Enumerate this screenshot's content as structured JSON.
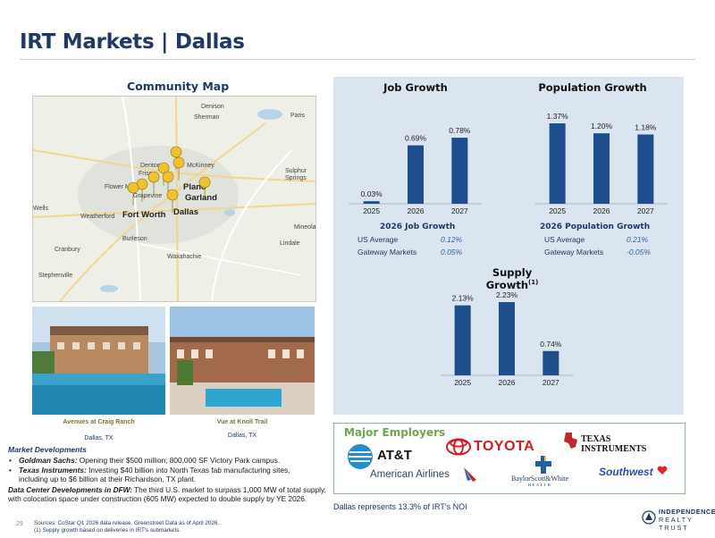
{
  "page": {
    "title": "IRT Markets | Dallas",
    "page_number": "29"
  },
  "map": {
    "heading": "Community Map",
    "labels": [
      {
        "text": "Denison",
        "cls": ""
      },
      {
        "text": "Sherman",
        "cls": ""
      },
      {
        "text": "Paris",
        "cls": ""
      },
      {
        "text": "Denton",
        "cls": ""
      },
      {
        "text": "McKinney",
        "cls": ""
      },
      {
        "text": "Frisco",
        "cls": ""
      },
      {
        "text": "Sulphur Springs",
        "cls": ""
      },
      {
        "text": "Flower Mound",
        "cls": ""
      },
      {
        "text": "Plano",
        "cls": "big"
      },
      {
        "text": "Grapevine",
        "cls": ""
      },
      {
        "text": "Garland",
        "cls": "big"
      },
      {
        "text": "Weatherford",
        "cls": ""
      },
      {
        "text": "Fort Worth",
        "cls": "big"
      },
      {
        "text": "Dallas",
        "cls": "big"
      },
      {
        "text": "Mineola",
        "cls": ""
      },
      {
        "text": "Burleson",
        "cls": ""
      },
      {
        "text": "Lindale",
        "cls": ""
      },
      {
        "text": "Cranbury",
        "cls": ""
      },
      {
        "text": "Waxahachie",
        "cls": ""
      },
      {
        "text": "Stephenville",
        "cls": ""
      },
      {
        "text": "Wells",
        "cls": ""
      }
    ]
  },
  "properties": [
    {
      "name": "Avenues at Craig Ranch",
      "location": "Dallas, TX"
    },
    {
      "name": "Vue at Knoll Trail",
      "location": "Dallas, TX"
    }
  ],
  "market_developments": {
    "heading": "Market Developments",
    "bullet": "•",
    "items": [
      {
        "company": "Goldman Sachs:",
        "text": " Opening their $500 million, 800,000 SF Victory Park campus."
      },
      {
        "company": "Texas Instruments:",
        "text": " Investing $40 billion into North Texas fab manufacturing sites, including up to $6 billion at their Richardson, TX plant."
      }
    ],
    "data_center_label": "Data Center Developments in DFW:",
    "data_center_text": " The third U.S. market to surpass 1,000 MW of total supply, with colocation space under construction (605 MW) expected to double supply by YE 2026."
  },
  "charts": {
    "job_growth_title": "Job Growth",
    "population_growth_title": "Population Growth",
    "supply_growth_title": "Supply Growth",
    "supply_growth_footnote_ref": "(1)"
  },
  "chart_data": [
    {
      "type": "bar",
      "title": "Job Growth",
      "categories": [
        "2025",
        "2026",
        "2027"
      ],
      "values": [
        0.03,
        0.69,
        0.78
      ],
      "labels": [
        "0.03%",
        "0.69%",
        "0.78%"
      ],
      "color": "#1f4e8c"
    },
    {
      "type": "bar",
      "title": "Population Growth",
      "categories": [
        "2025",
        "2026",
        "2027"
      ],
      "values": [
        1.37,
        1.2,
        1.18
      ],
      "labels": [
        "1.37%",
        "1.20%",
        "1.18%"
      ],
      "color": "#1f4e8c"
    },
    {
      "type": "bar",
      "title": "Supply Growth",
      "categories": [
        "2025",
        "2026",
        "2027"
      ],
      "values": [
        2.13,
        2.23,
        0.74
      ],
      "labels": [
        "2.13%",
        "2.23%",
        "0.74%"
      ],
      "color": "#1f4e8c"
    }
  ],
  "job_stats": {
    "title": "2026 Job Growth",
    "rows": [
      {
        "label": "US Average",
        "value": "0.12%"
      },
      {
        "label": "Gateway Markets",
        "value": "0.05%"
      }
    ]
  },
  "pop_stats": {
    "title": "2026 Population Growth",
    "rows": [
      {
        "label": "US Average",
        "value": "0.21%"
      },
      {
        "label": "Gateway Markets",
        "value": "-0.05%"
      }
    ]
  },
  "employers": {
    "heading": "Major Employers",
    "logos": {
      "att": "AT&T",
      "toyota": "TOYOTA",
      "ti_line1": "Texas",
      "ti_line2": "Instruments",
      "american": "American Airlines",
      "baylor_line1": "BaylorScott&White",
      "baylor_line2": "HEALTH",
      "southwest": "Southwest"
    }
  },
  "footer": {
    "noi_note": "Dallas represents 13.3% of IRT's NOI",
    "sources": "Sources: CoStar Q1 2026 data release. Greenstreet Data as of April 2026.",
    "footnote": "(1)  Supply growth based on deliveries in IRT's submarkets.",
    "brand_line1": "INDEPENDENCE",
    "brand_line2": "REALTY TRUST"
  },
  "colors": {
    "navy": "#1f3864",
    "bar": "#1f4e8c",
    "panel": "#dbe5f0",
    "accent_green": "#6aa84f"
  }
}
